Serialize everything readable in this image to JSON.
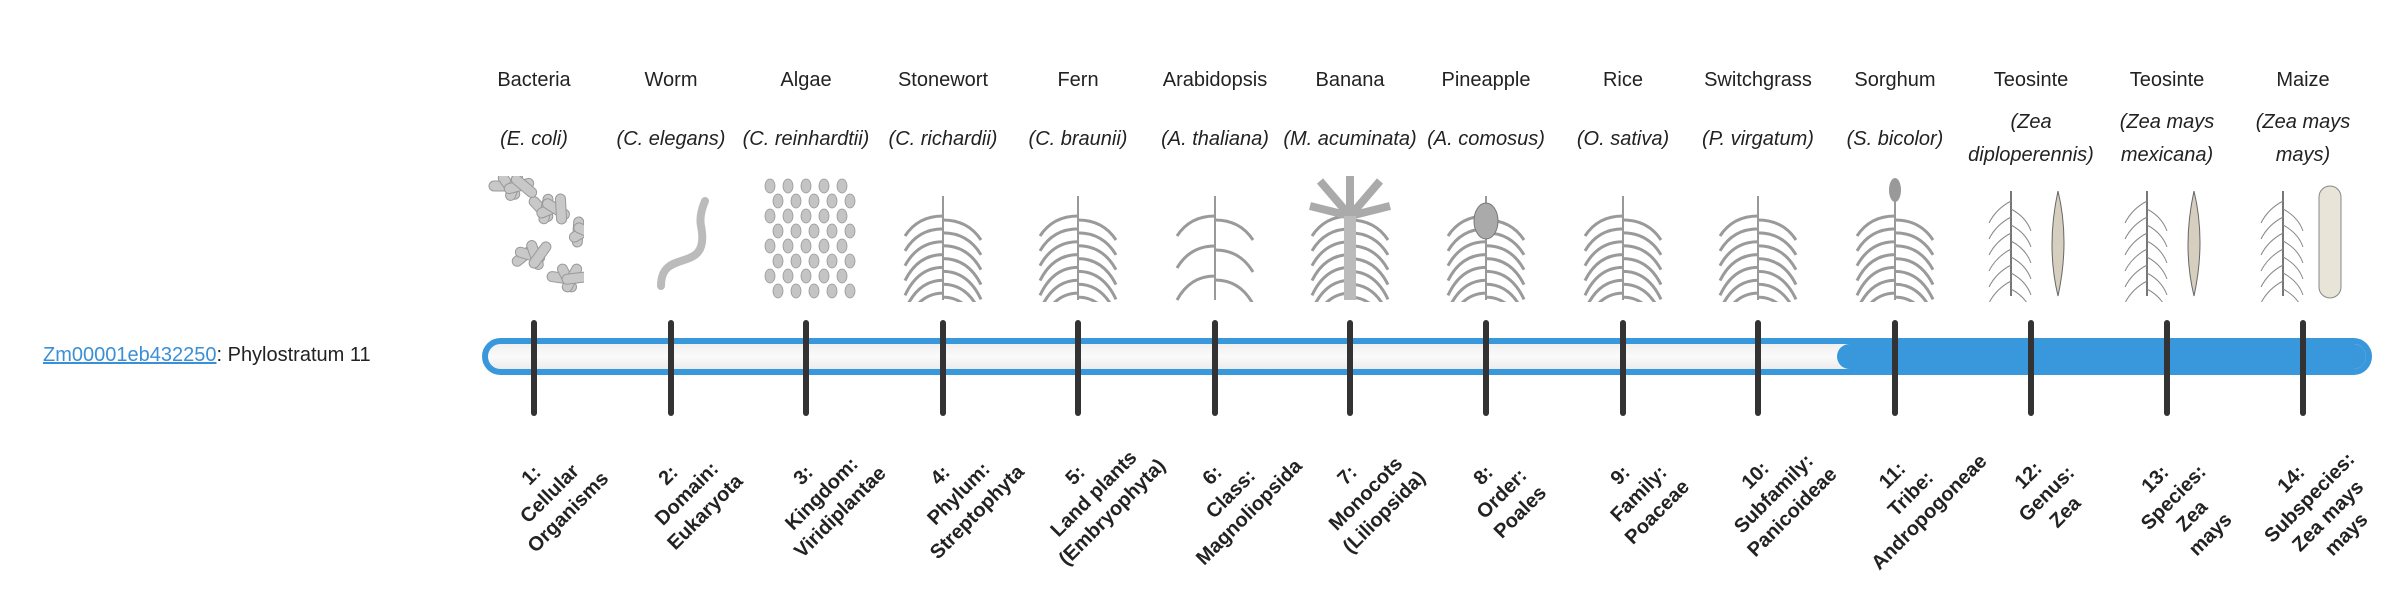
{
  "gene": {
    "id": "Zm00001eb432250",
    "suffix": ": Phylostratum 11"
  },
  "colors": {
    "accent": "#3898db",
    "tick": "#333333"
  },
  "progress": {
    "phylostratum": 11,
    "total": 14
  },
  "organisms": [
    {
      "common": "Bacteria",
      "scientific": "(E. coli)",
      "icon": "bacteria-illustration"
    },
    {
      "common": "Worm",
      "scientific": "(C. elegans)",
      "icon": "worm-illustration"
    },
    {
      "common": "Algae",
      "scientific": "(C. reinhardtii)",
      "icon": "algae-illustration"
    },
    {
      "common": "Stonewort",
      "scientific": "(C. richardii)",
      "icon": "stonewort-illustration"
    },
    {
      "common": "Fern",
      "scientific": "(C. braunii)",
      "icon": "fern-illustration"
    },
    {
      "common": "Arabidopsis",
      "scientific": "(A. thaliana)",
      "icon": "arabidopsis-illustration"
    },
    {
      "common": "Banana",
      "scientific": "(M. acuminata)",
      "icon": "banana-illustration"
    },
    {
      "common": "Pineapple",
      "scientific": "(A. comosus)",
      "icon": "pineapple-illustration"
    },
    {
      "common": "Rice",
      "scientific": "(O. sativa)",
      "icon": "rice-illustration"
    },
    {
      "common": "Switchgrass",
      "scientific": "(P. virgatum)",
      "icon": "switchgrass-illustration"
    },
    {
      "common": "Sorghum",
      "scientific": "(S. bicolor)",
      "icon": "sorghum-illustration"
    },
    {
      "common": "Teosinte",
      "scientific": "(Zea diploperennis)",
      "icon": "teosinte-illustration"
    },
    {
      "common": "Teosinte",
      "scientific": "(Zea mays mexicana)",
      "icon": "teosinte-illustration"
    },
    {
      "common": "Maize",
      "scientific": "(Zea mays mays)",
      "icon": "maize-illustration"
    }
  ],
  "strata": [
    "1:\nCellular\nOrganisms",
    "2:\nDomain:\nEukaryota",
    "3:\nKingdom:\nViridiplantae",
    "4:\nPhylum:\nStreptophyta",
    "5:\nLand plants\n(Embryophyta)",
    "6:\nClass:\nMagnoliopsida",
    "7:\nMonocots\n(Liliopsida)",
    "8:\nOrder:\nPoales",
    "9:\nFamily:\nPoaceae",
    "10:\nSubfamily:\nPanicoideae",
    "11:\nTribe:\nAndropogoneae",
    "12:\nGenus:\nZea",
    "13:\nSpecies:\nZea\nmays",
    "14:\nSubspecies:\nZea mays\nmays"
  ]
}
